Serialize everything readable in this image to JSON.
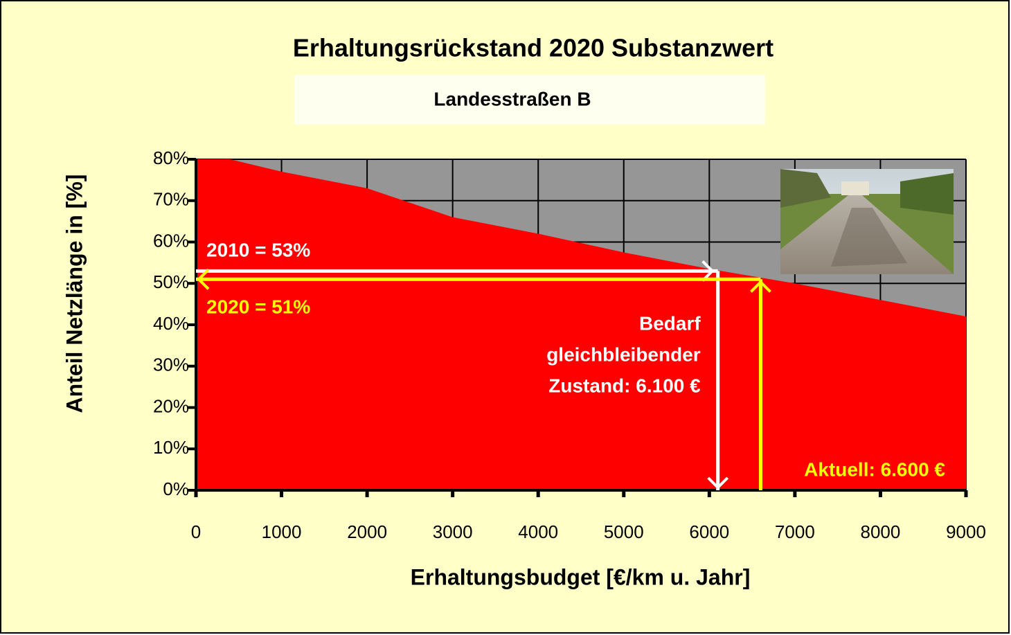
{
  "chart_data": {
    "type": "area",
    "title": "Erhaltungsrückstand  2020 Substanzwert",
    "subtitle": "Landesstraßen B",
    "x_label": "Erhaltungsbudget [€/km u. Jahr]",
    "y_label": "Anteil Netzlänge in [%]",
    "x": [
      0,
      400,
      1000,
      2000,
      3000,
      4000,
      5000,
      6000,
      7000,
      8000,
      9000
    ],
    "values": [
      80,
      80,
      77,
      73,
      66,
      62,
      57.5,
      53.5,
      50,
      46,
      42
    ],
    "color": "#ff0000",
    "background_color": "#969696",
    "xlim": [
      0,
      9000
    ],
    "ylim": [
      0,
      80
    ],
    "xticks": [
      0,
      1000,
      2000,
      3000,
      4000,
      5000,
      6000,
      7000,
      8000,
      9000
    ],
    "yticks": [
      {
        "value": 0,
        "label": "0%"
      },
      {
        "value": 10,
        "label": "10%"
      },
      {
        "value": 20,
        "label": "20%"
      },
      {
        "value": 30,
        "label": "30%"
      },
      {
        "value": 40,
        "label": "40%"
      },
      {
        "value": 50,
        "label": "50%"
      },
      {
        "value": 60,
        "label": "60%"
      },
      {
        "value": 70,
        "label": "70%"
      },
      {
        "value": 80,
        "label": "80%"
      }
    ],
    "grid": true,
    "markers": [
      {
        "label": "2010 = 53%",
        "y": 53,
        "x_label": [
          "Bedarf",
          "gleichbleibender",
          "Zustand: 6.100 €"
        ],
        "x": 6100,
        "color": "#ffffff"
      },
      {
        "label": "2020 = 51%",
        "y": 51,
        "x_label": [
          "Aktuell: 6.600 €"
        ],
        "x": 6600,
        "color": "#ffff00"
      }
    ]
  }
}
